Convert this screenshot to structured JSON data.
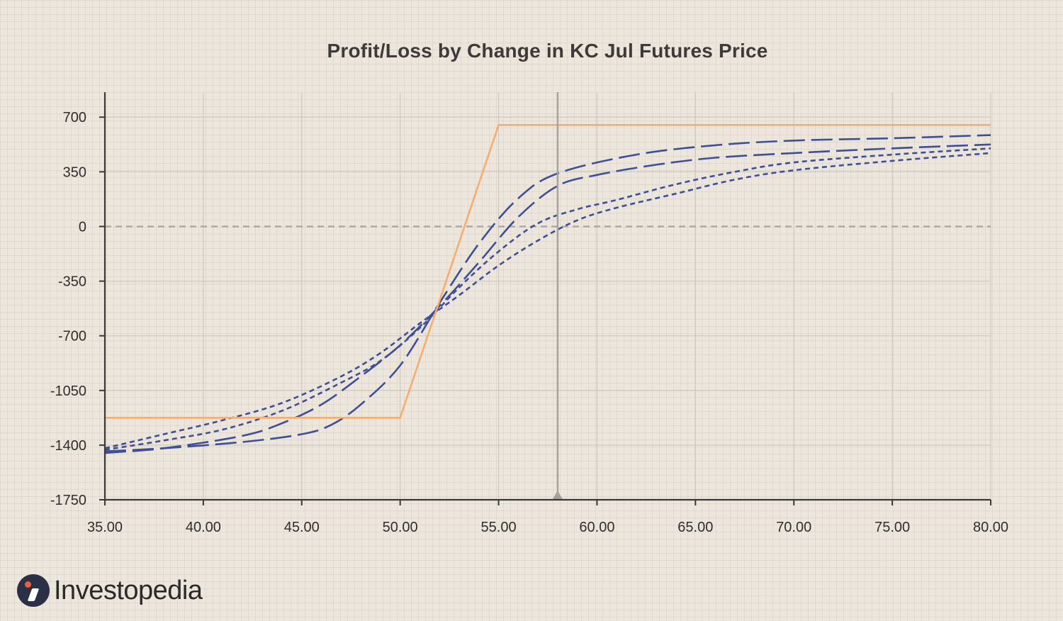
{
  "brand": {
    "name": "Investopedia",
    "colors": {
      "mark": "#2b3046",
      "dot": "#e8613a"
    }
  },
  "chart_data": {
    "type": "line",
    "title": "Profit/Loss by Change in KC Jul Futures Price",
    "xlabel": "",
    "ylabel": "",
    "xlim": [
      35,
      80
    ],
    "ylim": [
      -1750,
      860
    ],
    "x_ticks": [
      "35.00",
      "40.00",
      "45.00",
      "50.00",
      "55.00",
      "60.00",
      "65.00",
      "70.00",
      "75.00",
      "80.00"
    ],
    "y_ticks": [
      "700",
      "350",
      "0",
      "-350",
      "-700",
      "-1050",
      "-1400",
      "-1750"
    ],
    "grid": true,
    "zero_line": true,
    "current_price_marker": 58,
    "series": [
      {
        "style": "solid",
        "color": "#f6ae6e",
        "x": [
          35,
          50,
          55,
          80
        ],
        "y": [
          -1225,
          -1225,
          650,
          650
        ]
      },
      {
        "style": "long-dash",
        "color": "#3f4f97",
        "x": [
          35,
          38,
          42,
          45,
          46.5,
          48,
          50,
          52,
          54,
          56,
          58,
          62,
          66,
          70,
          75,
          80
        ],
        "y": [
          -1440,
          -1420,
          -1380,
          -1330,
          -1270,
          -1140,
          -890,
          -490,
          -110,
          180,
          340,
          460,
          520,
          550,
          565,
          585
        ]
      },
      {
        "style": "long-dash",
        "color": "#3f4f97",
        "x": [
          35,
          38,
          42,
          44,
          46,
          48,
          50,
          52,
          54,
          56,
          58,
          60,
          63,
          66,
          70,
          75,
          80
        ],
        "y": [
          -1450,
          -1420,
          -1340,
          -1260,
          -1140,
          -960,
          -760,
          -510,
          -230,
          60,
          260,
          330,
          395,
          440,
          470,
          500,
          525
        ]
      },
      {
        "style": "dotted",
        "color": "#3f4f97",
        "x": [
          35,
          38,
          41,
          44,
          47,
          49,
          51,
          53,
          55,
          57,
          59,
          61,
          64,
          67,
          70,
          75,
          80
        ],
        "y": [
          -1430,
          -1370,
          -1300,
          -1180,
          -1000,
          -860,
          -650,
          -390,
          -160,
          20,
          110,
          170,
          270,
          350,
          410,
          460,
          500
        ]
      },
      {
        "style": "dotted",
        "color": "#3f4f97",
        "x": [
          35,
          38,
          41,
          44,
          47,
          49,
          51,
          53,
          55,
          57,
          59,
          61,
          64,
          67,
          70,
          75,
          80
        ],
        "y": [
          -1420,
          -1330,
          -1240,
          -1130,
          -960,
          -810,
          -620,
          -440,
          -250,
          -90,
          40,
          120,
          210,
          300,
          360,
          420,
          470
        ]
      }
    ]
  }
}
